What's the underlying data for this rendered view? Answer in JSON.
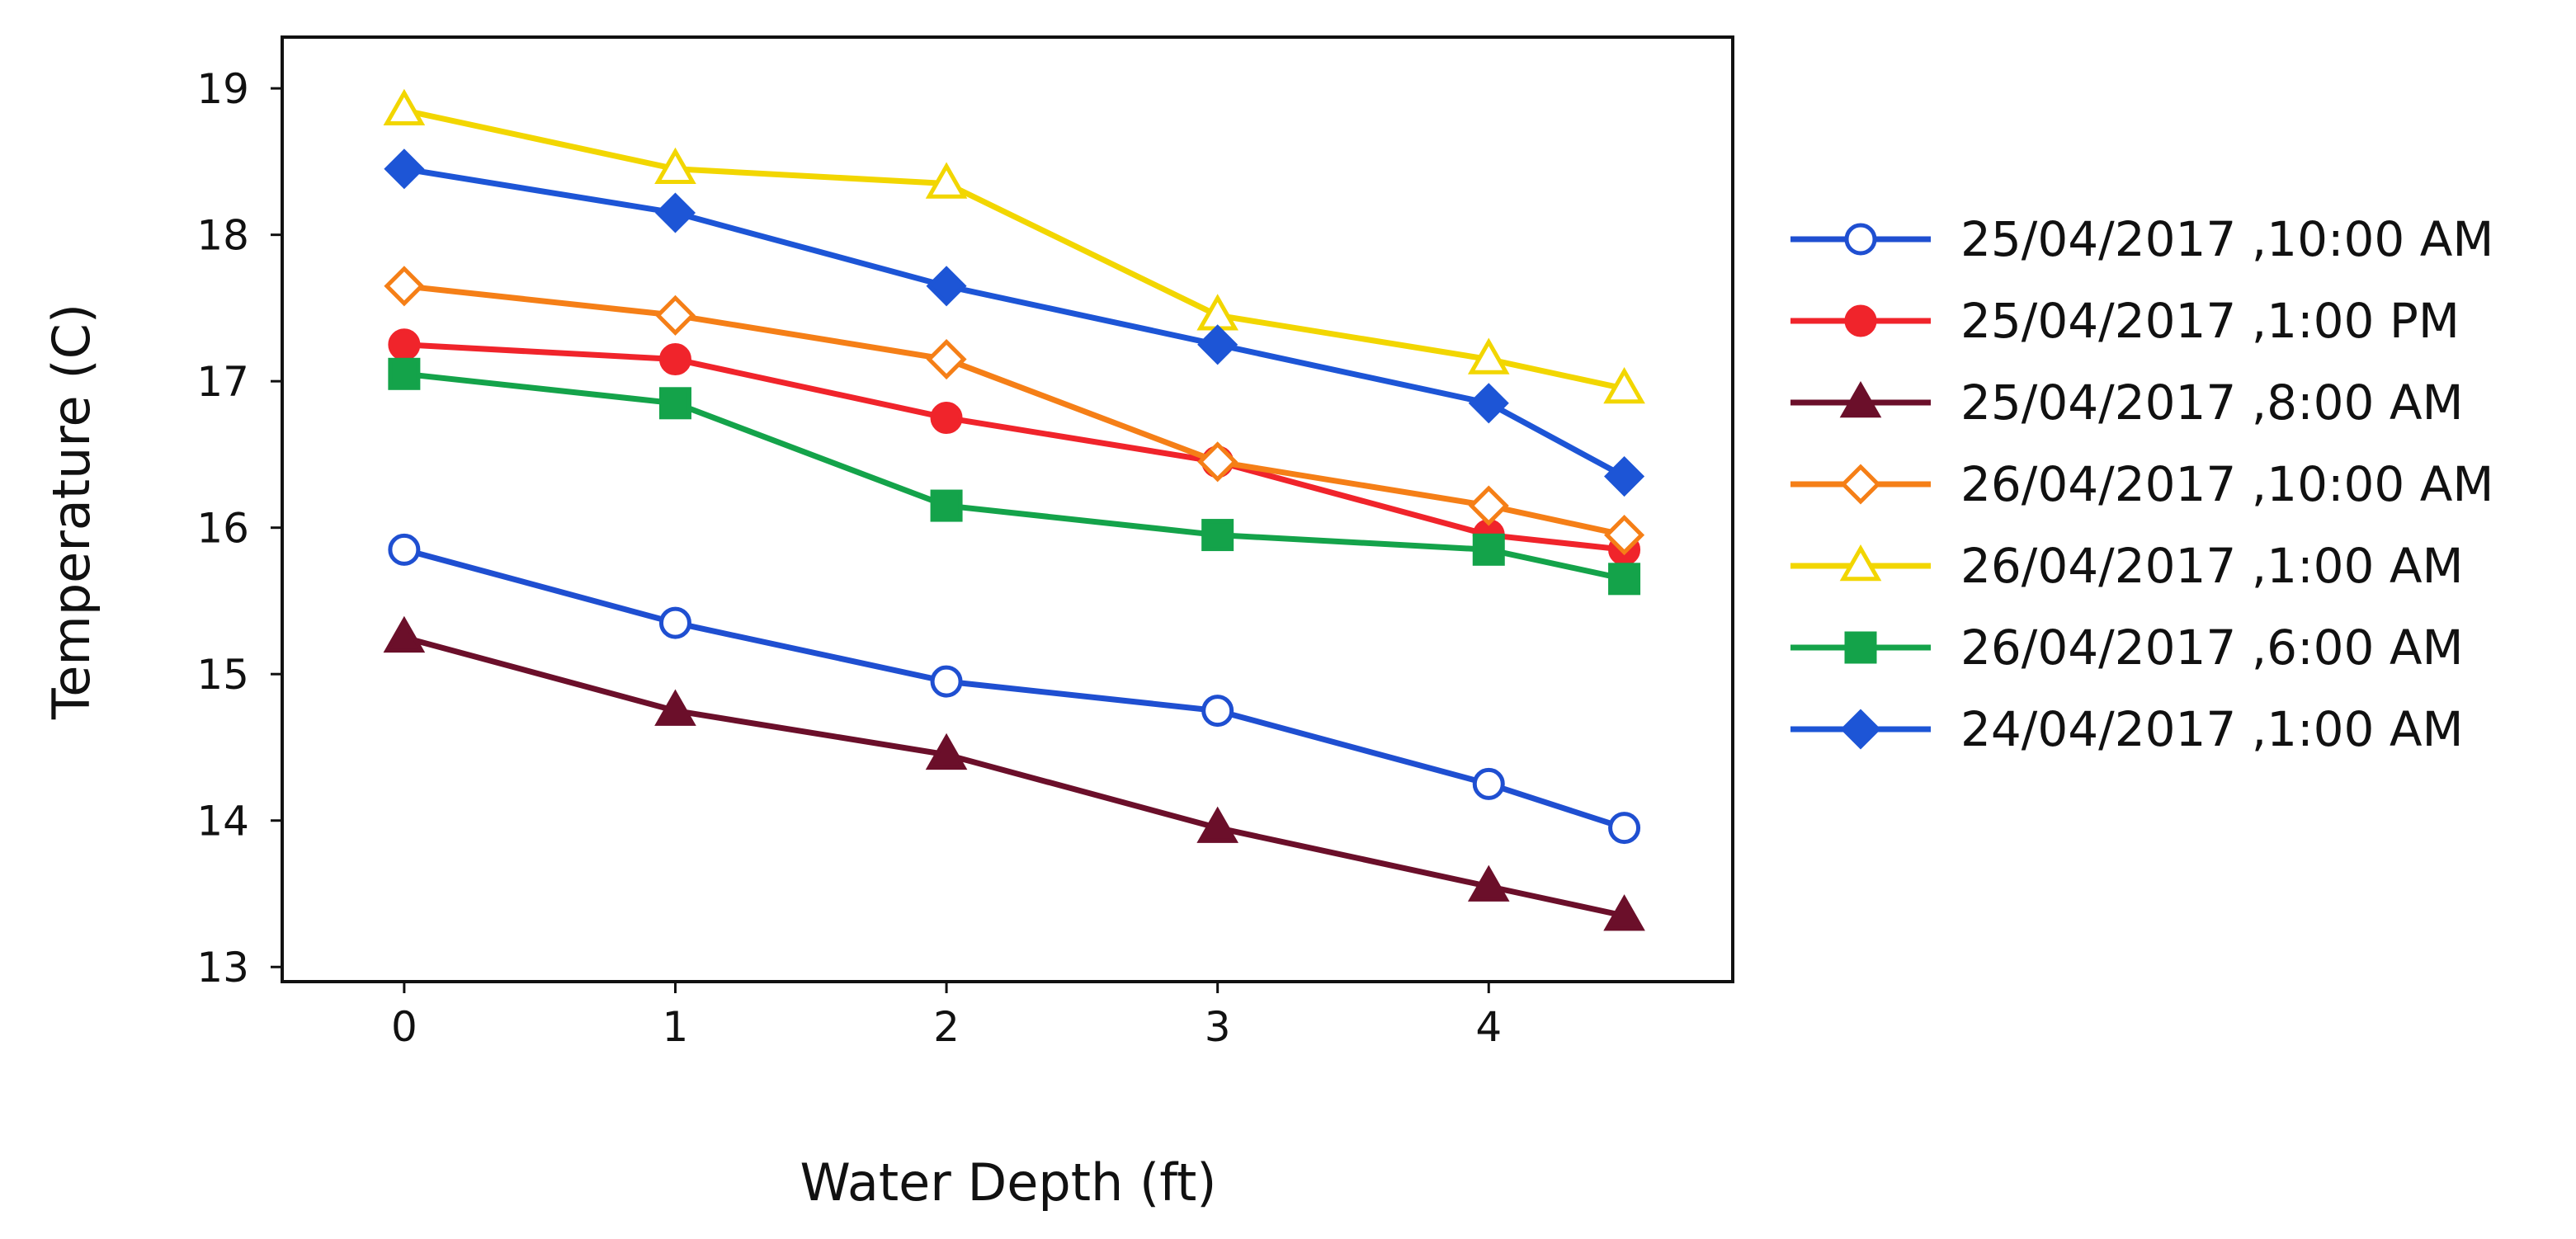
{
  "chart_data": {
    "type": "line",
    "title": "",
    "xlabel": "Water Depth (ft)",
    "ylabel": "Temperature (C)",
    "xlim": [
      -0.45,
      4.9
    ],
    "ylim": [
      12.9,
      19.35
    ],
    "xticks": [
      0,
      1,
      2,
      3,
      4
    ],
    "yticks": [
      13,
      14,
      15,
      16,
      17,
      18,
      19
    ],
    "grid": false,
    "legend_position": "right",
    "x": [
      0,
      1,
      2,
      3,
      4,
      4.5
    ],
    "series": [
      {
        "name": "25/04/2017 ,10:00 AM",
        "color": "#1f4fd1",
        "marker": "circle-open",
        "values": [
          15.85,
          15.35,
          14.95,
          14.75,
          14.25,
          13.95
        ]
      },
      {
        "name": "25/04/2017 ,1:00 PM",
        "color": "#f0242b",
        "marker": "circle-filled",
        "values": [
          17.25,
          17.15,
          16.75,
          16.45,
          15.95,
          15.85
        ]
      },
      {
        "name": "25/04/2017 ,8:00 AM",
        "color": "#6b0f2a",
        "marker": "triangle-filled",
        "values": [
          15.25,
          14.75,
          14.45,
          13.95,
          13.55,
          13.35
        ]
      },
      {
        "name": "26/04/2017 ,10:00 AM",
        "color": "#f57f17",
        "marker": "diamond-open",
        "values": [
          17.65,
          17.45,
          17.15,
          16.45,
          16.15,
          15.95
        ]
      },
      {
        "name": "26/04/2017 ,1:00 AM",
        "color": "#f2d600",
        "marker": "triangle-open",
        "values": [
          18.85,
          18.45,
          18.35,
          17.45,
          17.15,
          16.95
        ]
      },
      {
        "name": "26/04/2017 ,6:00 AM",
        "color": "#14a34a",
        "marker": "square-filled",
        "values": [
          17.05,
          16.85,
          16.15,
          15.95,
          15.85,
          15.65
        ]
      },
      {
        "name": "24/04/2017 ,1:00 AM",
        "color": "#1d55d6",
        "marker": "diamond-filled",
        "values": [
          18.45,
          18.15,
          17.65,
          17.25,
          16.85,
          16.35
        ]
      }
    ]
  }
}
